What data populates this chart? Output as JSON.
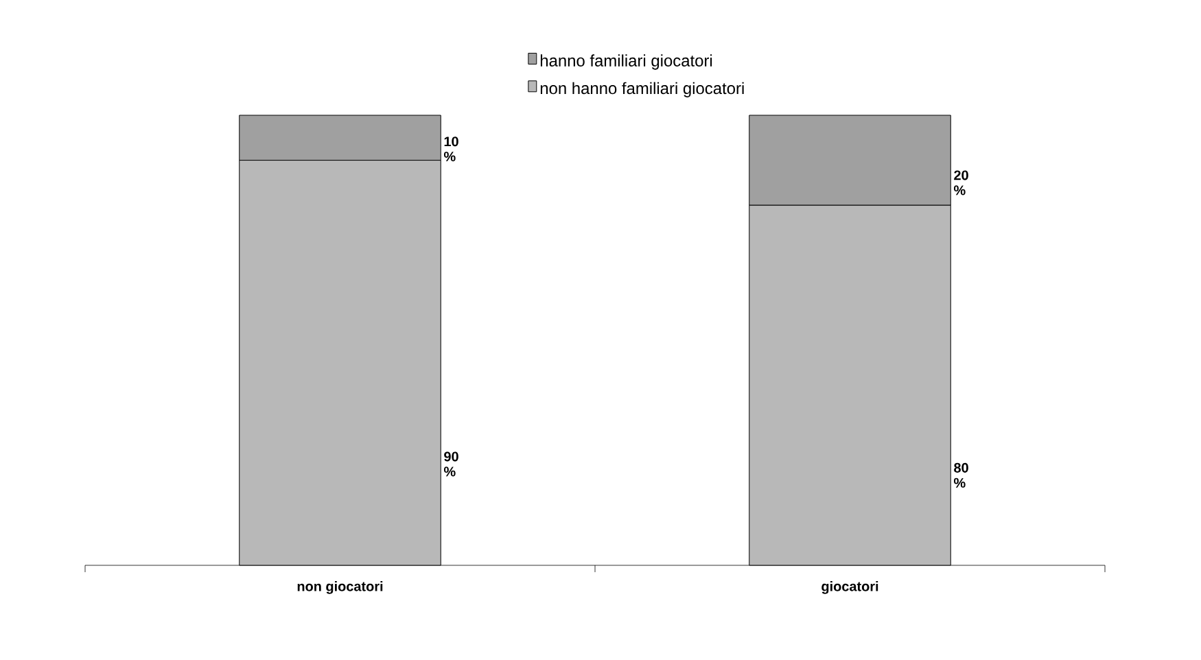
{
  "chart_data": {
    "type": "bar",
    "stacked": true,
    "categories": [
      "non giocatori",
      "giocatori"
    ],
    "series": [
      {
        "name": "non hanno familiari giocatori",
        "color": "#b8b8b8",
        "values": [
          90,
          80
        ],
        "value_labels": [
          "90 %",
          "80 %"
        ]
      },
      {
        "name": "hanno familiari giocatori",
        "color": "#a0a0a0",
        "values": [
          10,
          20
        ],
        "value_labels": [
          "10 %",
          "20 %"
        ]
      }
    ],
    "legend": "top"
  }
}
